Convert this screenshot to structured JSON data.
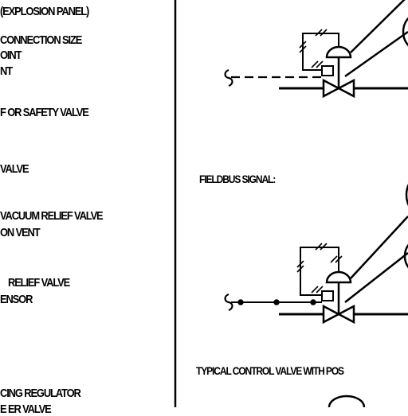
{
  "legend": {
    "explosion_panel": "(EXPLOSION PANEL)",
    "connection_size": "CONNECTION SIZE",
    "point": "OINT",
    "nt": "NT",
    "relief_safety_valve": "F OR SAFETY VALVE",
    "valve": "VALVE",
    "vacuum_relief_valve": "VACUUM RELIEF VALVE",
    "on_vent": "ON VENT",
    "relief_valve": "RELIEF VALVE",
    "ensor": "ENSOR",
    "reducing_regulator": "CING REGULATOR",
    "cut_line": "E ER VALVE"
  },
  "diagram": {
    "fieldbus_label": "FIELDBUS SIGNAL:",
    "typical_label": "TYPICAL CONTROL VALVE WITH POS"
  },
  "colors": {
    "ink": "#000000",
    "background": "#ffffff"
  }
}
